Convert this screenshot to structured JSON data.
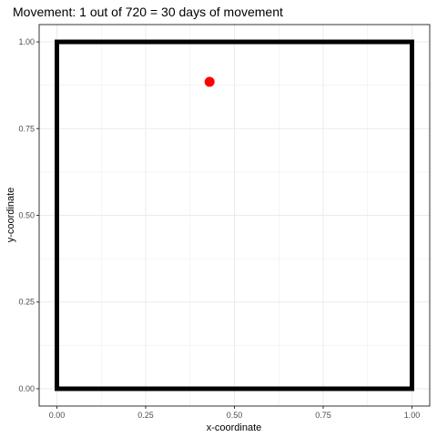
{
  "chart_data": {
    "type": "scatter",
    "title": "Movement: 1 out of 720 = 30 days of movement",
    "xlabel": "x-coordinate",
    "ylabel": "y-coordinate",
    "xlim": [
      -0.05,
      1.05
    ],
    "ylim": [
      -0.05,
      1.05
    ],
    "x_ticks": [
      "0.00",
      "0.25",
      "0.50",
      "0.75",
      "1.00"
    ],
    "y_ticks": [
      "0.00",
      "0.25",
      "0.50",
      "0.75",
      "1.00"
    ],
    "grid": true,
    "boundary": [
      [
        0,
        0
      ],
      [
        1,
        0
      ],
      [
        1,
        1
      ],
      [
        0,
        1
      ]
    ],
    "points": [
      {
        "x": 0.43,
        "y": 0.885
      }
    ],
    "colors": {
      "point": "#ff0000",
      "boundary": "#000000",
      "grid": "#ebebeb",
      "panel_border": "#333333"
    }
  }
}
